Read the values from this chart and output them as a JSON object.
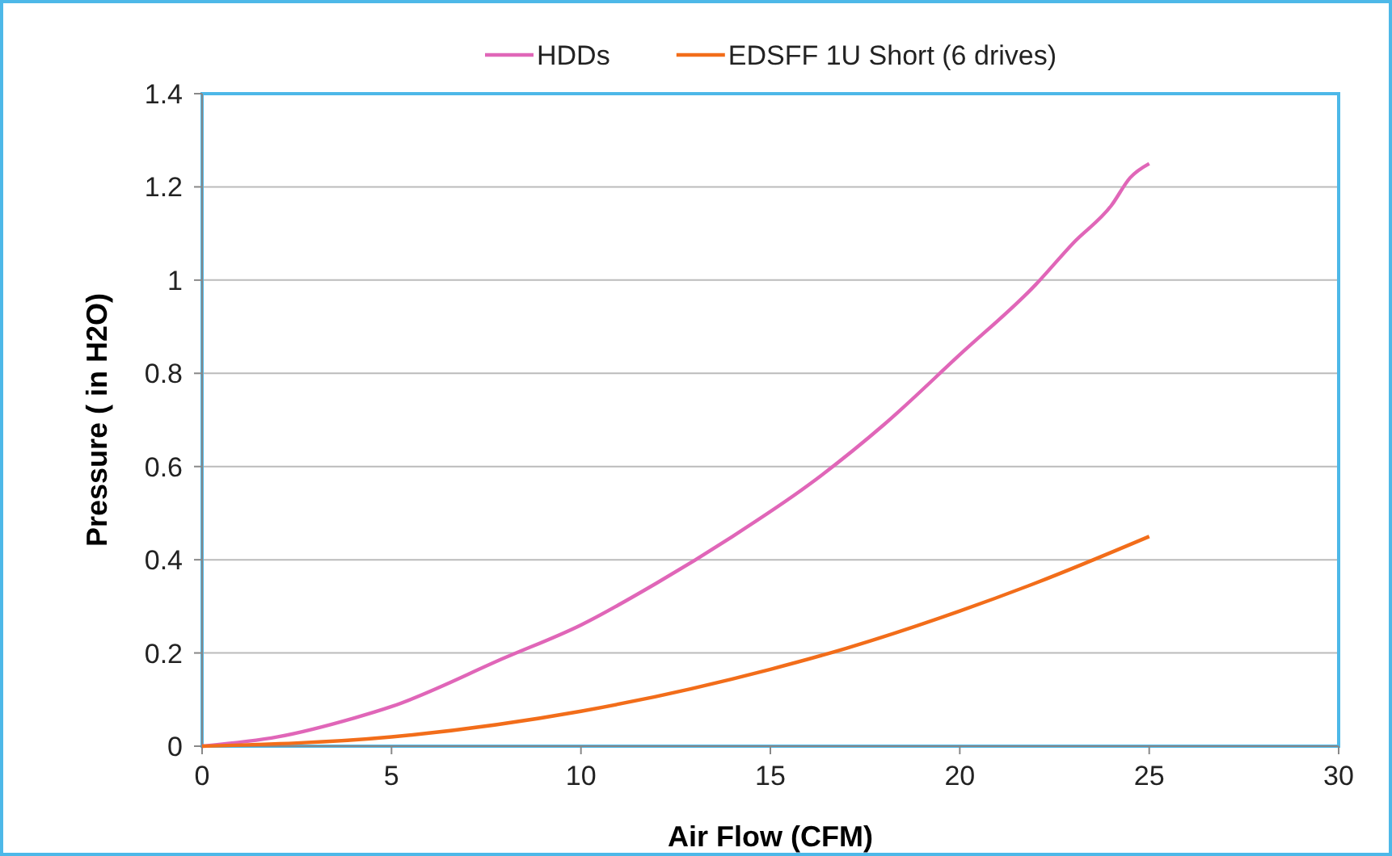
{
  "chart_data": {
    "type": "line",
    "xlabel": "Air Flow (CFM)",
    "ylabel": "Pressure  ( in H2O)",
    "xlim": [
      0,
      30
    ],
    "xticks": [
      0,
      5,
      10,
      15,
      20,
      25,
      30
    ],
    "ylim": [
      0,
      1.4
    ],
    "yticks": [
      0,
      0.2,
      0.4,
      0.6,
      0.8,
      1,
      1.2,
      1.4
    ],
    "grid": "y",
    "legend": "top",
    "marker": "none",
    "line_style": "solid",
    "series": [
      {
        "name": "HDDs",
        "color": "#e066b8",
        "x": [
          0,
          2,
          4,
          5,
          8,
          10,
          12,
          14,
          16,
          18,
          20,
          22,
          23,
          24,
          24.5,
          25
        ],
        "values": [
          0,
          0.02,
          0.06,
          0.085,
          0.19,
          0.26,
          0.35,
          0.45,
          0.56,
          0.69,
          0.84,
          0.99,
          1.08,
          1.16,
          1.22,
          1.25
        ]
      },
      {
        "name": "EDSFF 1U Short (6 drives)",
        "color": "#f26d1a",
        "x": [
          0,
          5,
          10,
          15,
          17,
          20,
          22,
          25
        ],
        "values": [
          0,
          0.02,
          0.075,
          0.165,
          0.21,
          0.29,
          0.35,
          0.45
        ]
      }
    ]
  }
}
